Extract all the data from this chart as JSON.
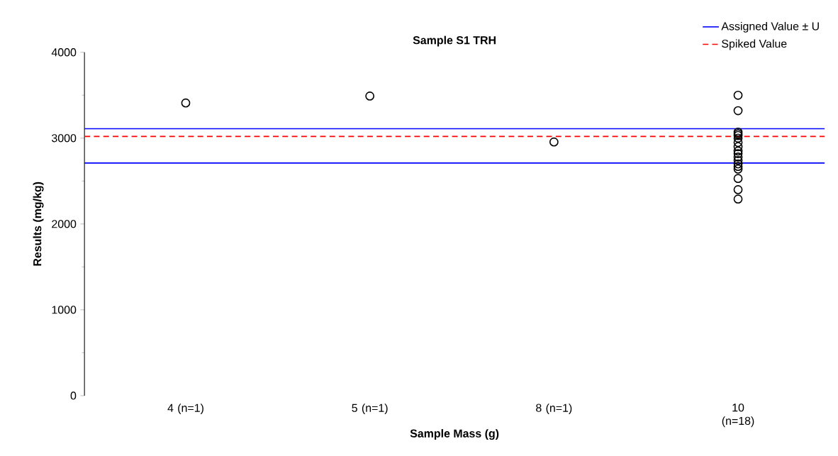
{
  "chart_data": {
    "type": "scatter",
    "title": "Sample S1 TRH",
    "xlabel": "Sample Mass (g)",
    "ylabel": "Results (mg/kg)",
    "categories": [
      "4 (n=1)",
      "5 (n=1)",
      "8 (n=1)",
      "10 (n=18)"
    ],
    "series": [
      {
        "color": "#000000",
        "x": [
          "4 (n=1)",
          "5 (n=1)",
          "8 (n=1)",
          "10 (n=18)",
          "10 (n=18)",
          "10 (n=18)",
          "10 (n=18)",
          "10 (n=18)",
          "10 (n=18)",
          "10 (n=18)",
          "10 (n=18)",
          "10 (n=18)",
          "10 (n=18)",
          "10 (n=18)",
          "10 (n=18)",
          "10 (n=18)",
          "10 (n=18)",
          "10 (n=18)",
          "10 (n=18)",
          "10 (n=18)",
          "10 (n=18)"
        ],
        "values": [
          3410,
          3490,
          2955,
          3500,
          3320,
          3070,
          3050,
          3030,
          3000,
          2950,
          2900,
          2850,
          2820,
          2780,
          2740,
          2700,
          2670,
          2640,
          2530,
          2400,
          2290
        ]
      }
    ],
    "ref_lines": [
      {
        "axis": "y",
        "value": 3110,
        "label": "Assigned Value ± U",
        "color": "#0000ff",
        "line_style": "solid"
      },
      {
        "axis": "y",
        "value": 2710,
        "color": "#0000ff",
        "line_style": "solid"
      },
      {
        "axis": "y",
        "value": 3020,
        "label": "Spiked Value",
        "color": "#ff0000",
        "line_style": "dashed"
      }
    ],
    "ylim": [
      0,
      4000
    ],
    "yticks": [
      0,
      1000,
      2000,
      3000,
      4000
    ],
    "marker": "circle",
    "legend": "top right"
  }
}
